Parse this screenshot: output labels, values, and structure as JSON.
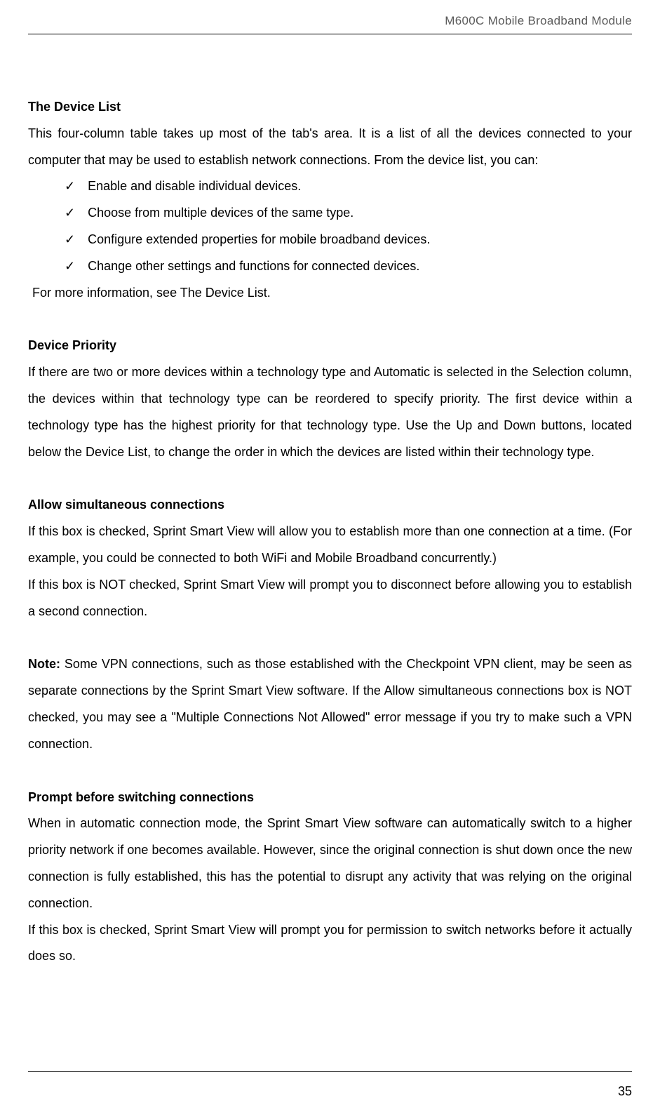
{
  "header": {
    "title": "M600C Mobile Broadband Module"
  },
  "sections": {
    "deviceList": {
      "heading": "The Device List",
      "intro": "This four-column table takes up most of the tab's area. It is a list of all the devices connected to your computer that may be used to establish network connections. From the device list, you can:",
      "bullets": [
        "Enable and disable individual devices.",
        "Choose from multiple devices of the same type.",
        "Configure extended properties for mobile broadband devices.",
        "Change other settings and functions for connected devices."
      ],
      "afterBullets": "For more information, see The Device List."
    },
    "devicePriority": {
      "heading": "Device Priority",
      "body": "If there are two or more devices within a technology type and Automatic is selected in the Selection column, the devices within that technology type can be reordered to specify priority. The first device within a technology type has the highest priority for that technology type. Use the Up and Down buttons, located below the Device List, to change the order in which the devices are listed within their technology type."
    },
    "allowSimultaneous": {
      "heading": "Allow simultaneous connections",
      "body1": "If this box is checked, Sprint Smart View will allow you to establish more than one connection at a time. (For example, you could be connected to both WiFi and Mobile Broadband concurrently.)",
      "body2": "If this box is NOT checked, Sprint Smart View will prompt you to disconnect before allowing you to establish a second connection.",
      "noteLabel": "Note:",
      "noteBody": " Some VPN connections, such as those established with the Checkpoint VPN client, may be seen as separate connections by the Sprint Smart View software.  If the Allow simultaneous connections box is NOT checked, you may see a \"Multiple Connections Not Allowed\" error message if you try to make such a VPN connection."
    },
    "promptSwitch": {
      "heading": "Prompt before switching connections",
      "body1": "When in automatic connection mode, the Sprint Smart View software can automatically switch to a higher priority network if one becomes available. However, since the original connection is shut down once the new connection is fully established, this has the potential to disrupt any activity that was relying on the original connection.",
      "body2": "If this box is checked, Sprint Smart View will prompt you for permission to switch networks before it actually does so."
    }
  },
  "footer": {
    "pageNumber": "35"
  },
  "icons": {
    "checkmark": "✓"
  }
}
